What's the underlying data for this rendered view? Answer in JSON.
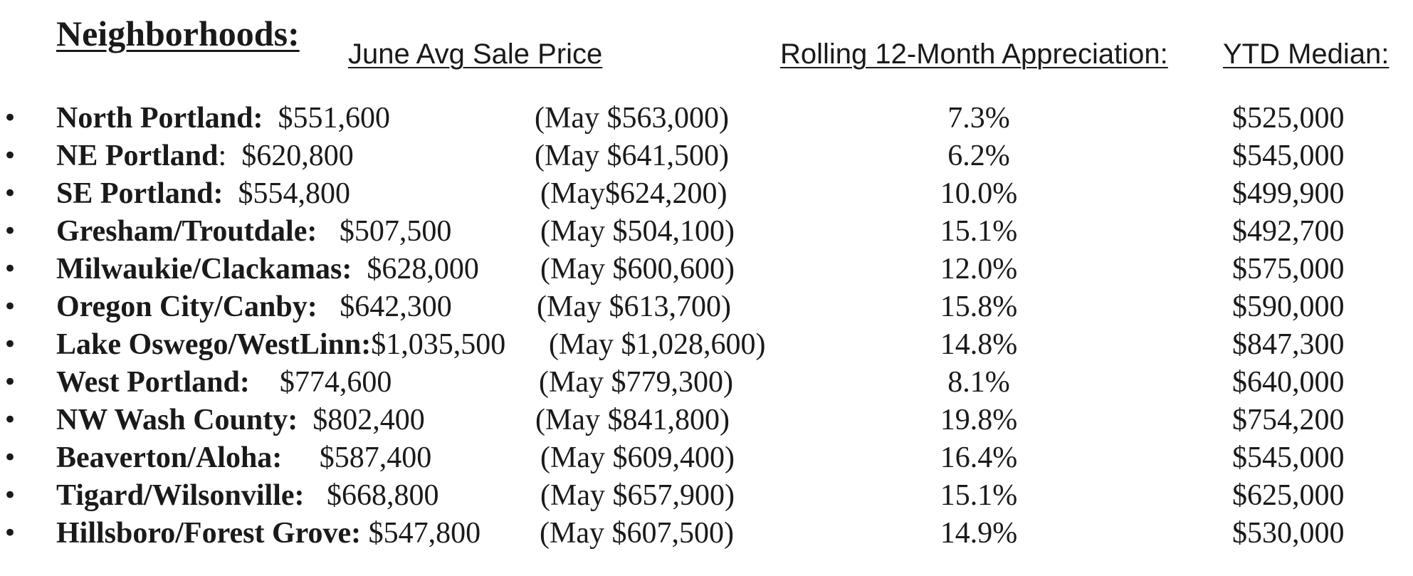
{
  "header": {
    "neighborhoods": "Neighborhoods:",
    "june_avg": "June Avg Sale Price",
    "rolling": "Rolling 12-Month Appreciation:",
    "ytd": "YTD Median:"
  },
  "bullet": "•",
  "rows": [
    {
      "name": "North Portland:",
      "sep": "  ",
      "june": "$551,600",
      "may": "(May $563,000)",
      "pct": "7.3%",
      "median": "$525,000"
    },
    {
      "name": "NE Portland",
      "sep": ":  ",
      "june": "$620,800",
      "may": "(May $641,500)",
      "pct": "6.2%",
      "median": "$545,000"
    },
    {
      "name": "SE Portland:",
      "sep": "  ",
      "june": "$554,800",
      "may": "(May$624,200)",
      "pct": "10.0%",
      "median": "$499,900"
    },
    {
      "name": "Gresham/Troutdale:",
      "sep": "   ",
      "june": "$507,500",
      "may": "(May $504,100)",
      "pct": "15.1%",
      "median": "$492,700"
    },
    {
      "name": "Milwaukie/Clackamas:",
      "sep": "  ",
      "june": "$628,000",
      "may": "(May $600,600)",
      "pct": "12.0%",
      "median": "$575,000"
    },
    {
      "name": "Oregon City/Canby:",
      "sep": "   ",
      "june": "$642,300",
      "may": "(May $613,700)",
      "pct": "15.8%",
      "median": "$590,000"
    },
    {
      "name": "Lake Oswego/WestLinn:",
      "sep": "",
      "june": "$1,035,500",
      "may": "(May $1,028,600)",
      "pct": "14.8%",
      "median": "$847,300"
    },
    {
      "name": "West Portland:",
      "sep": "    ",
      "june": "$774,600",
      "may": "(May $779,300)",
      "pct": "8.1%",
      "median": "$640,000"
    },
    {
      "name": "NW Wash County:",
      "sep": "  ",
      "june": "$802,400",
      "may": "(May $841,800)",
      "pct": "19.8%",
      "median": "$754,200"
    },
    {
      "name": "Beaverton/Aloha:",
      "sep": "     ",
      "june": "$587,400",
      "may": "(May $609,400)",
      "pct": "16.4%",
      "median": "$545,000"
    },
    {
      "name": "Tigard/Wilsonville:",
      "sep": "   ",
      "june": "$668,800",
      "may": "(May $657,900)",
      "pct": "15.1%",
      "median": "$625,000"
    },
    {
      "name": "Hillsboro/Forest Grove:",
      "sep": " ",
      "june": "$547,800",
      "may": "(May $607,500)",
      "pct": "14.9%",
      "median": "$530,000"
    }
  ]
}
